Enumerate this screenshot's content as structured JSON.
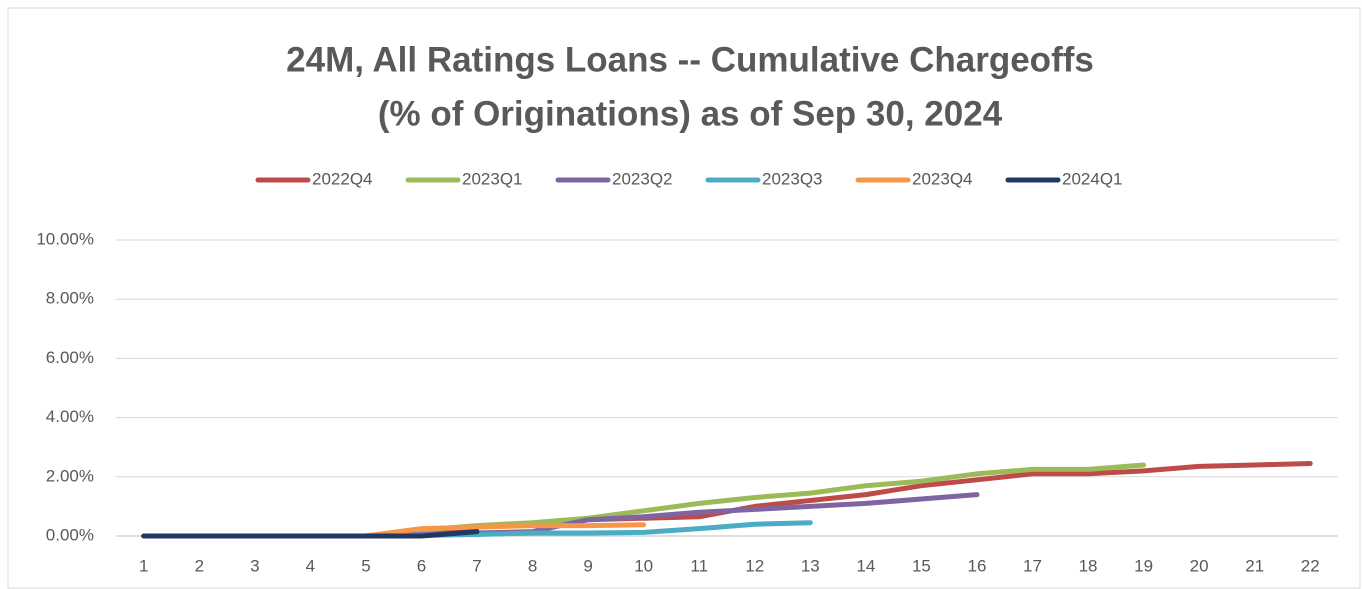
{
  "chart_data": {
    "type": "line",
    "title": [
      "24M, All Ratings Loans -- Cumulative Chargeoffs",
      "(% of Originations) as of Sep 30, 2024"
    ],
    "categories": [
      1,
      2,
      3,
      4,
      5,
      6,
      7,
      8,
      9,
      10,
      11,
      12,
      13,
      14,
      15,
      16,
      17,
      18,
      19,
      20,
      21,
      22
    ],
    "series": [
      {
        "name": "2022Q4",
        "color": "#be4b48",
        "values": [
          0,
          0,
          0,
          0,
          0,
          0.15,
          0.3,
          0.4,
          0.55,
          0.6,
          0.65,
          1.0,
          1.2,
          1.4,
          1.7,
          1.9,
          2.1,
          2.1,
          2.2,
          2.35,
          2.4,
          2.45
        ]
      },
      {
        "name": "2023Q1",
        "color": "#9bbb59",
        "values": [
          0,
          0,
          0,
          0,
          0,
          0.2,
          0.35,
          0.45,
          0.6,
          0.85,
          1.1,
          1.3,
          1.45,
          1.7,
          1.85,
          2.1,
          2.25,
          2.25,
          2.4,
          null,
          null,
          null
        ]
      },
      {
        "name": "2023Q2",
        "color": "#8064a2",
        "values": [
          0,
          0,
          0,
          0,
          0,
          0.05,
          0.1,
          0.15,
          0.55,
          0.65,
          0.8,
          0.9,
          1.0,
          1.1,
          1.25,
          1.4,
          null,
          null,
          null,
          null,
          null,
          null
        ]
      },
      {
        "name": "2023Q3",
        "color": "#4bacc6",
        "values": [
          0,
          0,
          0,
          0,
          0,
          0.02,
          0.05,
          0.1,
          0.1,
          0.12,
          0.25,
          0.4,
          0.45,
          null,
          null,
          null,
          null,
          null,
          null,
          null,
          null,
          null
        ]
      },
      {
        "name": "2023Q4",
        "color": "#f79646",
        "values": [
          0,
          0,
          0,
          0,
          0,
          0.25,
          0.3,
          0.35,
          0.35,
          0.38,
          null,
          null,
          null,
          null,
          null,
          null,
          null,
          null,
          null,
          null,
          null,
          null
        ]
      },
      {
        "name": "2024Q1",
        "color": "#1f3864",
        "values": [
          0,
          0,
          0,
          0,
          0,
          0,
          0.15,
          null,
          null,
          null,
          null,
          null,
          null,
          null,
          null,
          null,
          null,
          null,
          null,
          null,
          null,
          null
        ]
      }
    ],
    "ylim": [
      0,
      10
    ],
    "yticks": [
      {
        "value": 0,
        "label": "0.00%"
      },
      {
        "value": 2,
        "label": "2.00%"
      },
      {
        "value": 4,
        "label": "4.00%"
      },
      {
        "value": 6,
        "label": "6.00%"
      },
      {
        "value": 8,
        "label": "8.00%"
      },
      {
        "value": 10,
        "label": "10.00%"
      }
    ],
    "grid": true,
    "legend": "top"
  }
}
